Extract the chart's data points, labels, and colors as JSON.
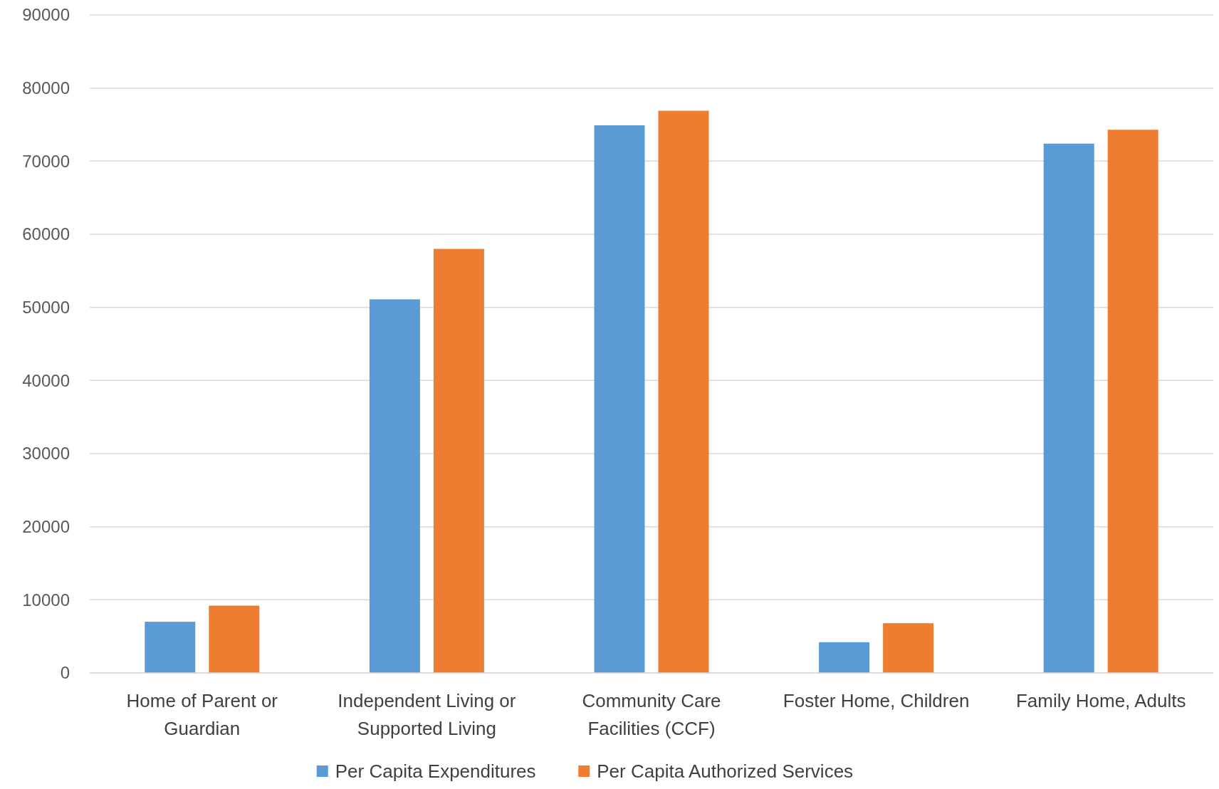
{
  "chart_data": {
    "type": "bar",
    "categories": [
      "Home of Parent or Guardian",
      "Independent Living or Supported Living",
      "Community Care Facilities (CCF)",
      "Foster Home, Children",
      "Family Home, Adults"
    ],
    "series": [
      {
        "name": "Per Capita Expenditures",
        "color": "#5b9bd5",
        "values": [
          7000,
          51100,
          74900,
          4200,
          72400
        ]
      },
      {
        "name": "Per Capita Authorized Services",
        "color": "#ed7d31",
        "values": [
          9200,
          58000,
          76900,
          6800,
          74300
        ]
      }
    ],
    "ylim": [
      0,
      90000
    ],
    "yticks": [
      0,
      10000,
      20000,
      30000,
      40000,
      50000,
      60000,
      70000,
      80000,
      90000
    ],
    "grid": "y",
    "legend": "bottom"
  }
}
